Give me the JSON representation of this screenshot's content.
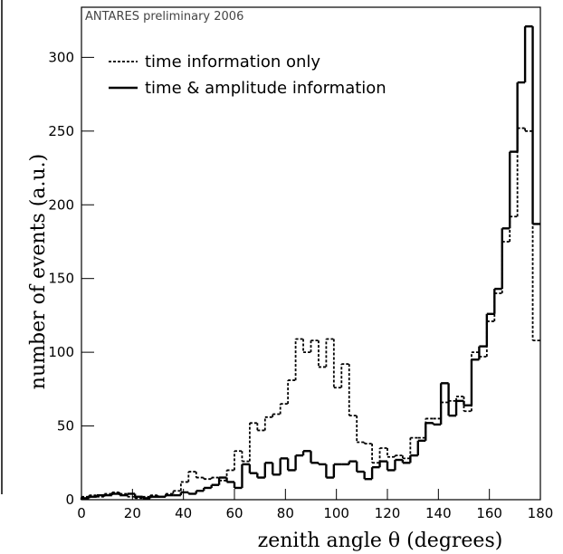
{
  "chart_data": {
    "type": "histogram",
    "annotation": "ANTARES preliminary 2006",
    "xlabel": "zenith angle θ (degrees)",
    "ylabel": "number of events (a.u.)",
    "bins": [
      0,
      3,
      6,
      9,
      12,
      15,
      18,
      21,
      24,
      27,
      30,
      33,
      36,
      39,
      42,
      45,
      48,
      51,
      54,
      57,
      60,
      63,
      66,
      69,
      72,
      75,
      78,
      81,
      84,
      87,
      90,
      93,
      96,
      99,
      102,
      105,
      108,
      111,
      114,
      117,
      120,
      123,
      126,
      129,
      132,
      135,
      138,
      141,
      144,
      147,
      150,
      153,
      156,
      159,
      162,
      165,
      168,
      171,
      174,
      177,
      180
    ],
    "series": [
      {
        "name": "time information only",
        "color": "#000000",
        "dash": "dotted",
        "values": [
          2,
          3,
          2,
          4,
          5,
          4,
          2,
          1,
          2,
          3,
          2,
          4,
          6,
          12,
          19,
          15,
          14,
          15,
          13,
          20,
          33,
          26,
          52,
          47,
          56,
          58,
          65,
          81,
          109,
          100,
          108,
          90,
          109,
          76,
          92,
          57,
          39,
          38,
          25,
          35,
          29,
          30,
          28,
          42,
          42,
          55,
          55,
          66,
          67,
          70,
          60,
          100,
          97,
          121,
          140,
          175,
          192,
          252,
          250,
          108
        ]
      },
      {
        "name": "time & amplitude information",
        "color": "#000000",
        "dash": "solid",
        "values": [
          1,
          2,
          3,
          3,
          4,
          3,
          4,
          2,
          1,
          2,
          2,
          3,
          3,
          5,
          4,
          6,
          8,
          10,
          15,
          12,
          8,
          24,
          18,
          15,
          25,
          17,
          28,
          20,
          30,
          33,
          25,
          24,
          15,
          24,
          24,
          26,
          19,
          14,
          22,
          26,
          20,
          27,
          25,
          30,
          40,
          52,
          51,
          79,
          57,
          67,
          64,
          95,
          104,
          126,
          143,
          184,
          236,
          283,
          321,
          187
        ]
      }
    ],
    "xlim": [
      0,
      180
    ],
    "ylim": [
      0,
      334
    ],
    "xticks": [
      0,
      20,
      40,
      60,
      80,
      100,
      120,
      140,
      160,
      180
    ],
    "yticks": [
      0,
      50,
      100,
      150,
      200,
      250,
      300
    ],
    "legend": "upper left"
  }
}
